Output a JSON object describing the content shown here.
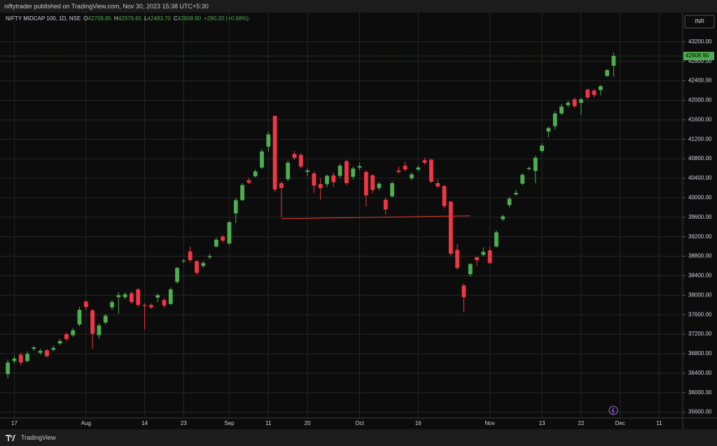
{
  "header": {
    "publisher": "niftytrader published on TradingView.com, Nov 30, 2023 15:38 UTC+5:30"
  },
  "footer": {
    "brand": "TradingView"
  },
  "chart_data": {
    "type": "candlestick",
    "title": "NIFTY MIDCAP 100, 1D, NSE",
    "ohlc_legend": [
      {
        "label": "O",
        "value": "42709.85"
      },
      {
        "label": "H",
        "value": "42979.65"
      },
      {
        "label": "L",
        "value": "42483.70"
      },
      {
        "label": "C",
        "value": "42908.90"
      }
    ],
    "change": "+290.20 (+0.68%)",
    "currency": "INR",
    "last_price_label": "42908.90",
    "up_color": "#4caf50",
    "down_color": "#f23645",
    "open": [
      36380,
      36650,
      36780,
      36650,
      36900,
      36820,
      36870,
      36880,
      37010,
      37200,
      37180,
      37400,
      37870,
      37690,
      37180,
      37440,
      37750,
      37960,
      37960,
      38040,
      38120,
      37800,
      37800,
      37950,
      37900,
      37820,
      38270,
      38700,
      38900,
      38700,
      38600,
      38780,
      39000,
      39200,
      39060,
      39680,
      39950,
      40360,
      40440,
      40620,
      41050,
      41680,
      40300,
      40380,
      40900,
      40880,
      40530,
      40500,
      40280,
      40280,
      40460,
      40450,
      40750,
      40430,
      40620,
      40530,
      40460,
      40200,
      39960,
      40030,
      40560,
      40660,
      40400,
      40580,
      40770,
      40780,
      40300,
      40240,
      39920,
      38930,
      38200,
      38430,
      38780,
      38830,
      38920,
      39000,
      39560,
      39850,
      40070,
      40290,
      40590,
      40550,
      40960,
      41360,
      41470,
      41730,
      41900,
      42020,
      41950,
      42220,
      42200,
      42210,
      42500,
      42709.85
    ],
    "high": [
      36680,
      36760,
      36820,
      36850,
      36960,
      36900,
      36900,
      36970,
      37100,
      37240,
      37320,
      37760,
      37900,
      37720,
      37420,
      37620,
      37900,
      38060,
      38060,
      38080,
      38150,
      37840,
      37830,
      38040,
      37940,
      38160,
      38580,
      38740,
      39000,
      38720,
      38700,
      38850,
      39180,
      39240,
      39520,
      39990,
      40300,
      40400,
      40580,
      41000,
      41360,
      41680,
      40340,
      40760,
      40960,
      40920,
      40600,
      40540,
      40400,
      40480,
      40520,
      40700,
      40780,
      40640,
      40720,
      40560,
      40480,
      40320,
      40000,
      40340,
      40640,
      40740,
      40520,
      40660,
      40820,
      40800,
      40380,
      40260,
      39930,
      39050,
      38240,
      38660,
      38800,
      38980,
      39000,
      39330,
      39650,
      40020,
      40160,
      40500,
      40640,
      40860,
      41120,
      41460,
      41780,
      41920,
      41990,
      42060,
      42050,
      42240,
      42230,
      42310,
      42640,
      42979.65
    ],
    "low": [
      36300,
      36600,
      36560,
      36620,
      36860,
      36780,
      36720,
      36850,
      36980,
      37060,
      37150,
      37360,
      37700,
      36900,
      37100,
      37400,
      37700,
      37620,
      37920,
      37820,
      37760,
      37300,
      37720,
      37860,
      37740,
      37800,
      38240,
      38660,
      38680,
      38420,
      38560,
      38740,
      38980,
      39080,
      39040,
      39480,
      39940,
      40280,
      40420,
      40590,
      40950,
      40120,
      39600,
      40340,
      40780,
      40600,
      40440,
      40100,
      39960,
      40220,
      40220,
      40400,
      40260,
      40380,
      40560,
      39820,
      40100,
      40150,
      39650,
      40000,
      40500,
      40540,
      40360,
      40540,
      40680,
      40300,
      40200,
      39780,
      38800,
      38520,
      37650,
      38380,
      38600,
      38800,
      38640,
      38980,
      39520,
      39800,
      40040,
      40260,
      40560,
      40300,
      40920,
      41240,
      41400,
      41700,
      41860,
      41840,
      41700,
      42020,
      42060,
      42100,
      42480,
      42483.7
    ],
    "close": [
      36620,
      36700,
      36620,
      36800,
      36930,
      36860,
      36750,
      36920,
      37060,
      37100,
      37280,
      37700,
      37760,
      37210,
      37380,
      37580,
      37860,
      38000,
      38020,
      37860,
      37800,
      37780,
      37750,
      38000,
      37790,
      38120,
      38560,
      38710,
      38720,
      38460,
      38660,
      38800,
      39140,
      39120,
      39500,
      39950,
      40260,
      40310,
      40540,
      40950,
      41300,
      40170,
      40200,
      40720,
      40820,
      40640,
      40560,
      40250,
      40200,
      40450,
      40320,
      40660,
      40300,
      40600,
      40650,
      40050,
      40160,
      40290,
      39760,
      40300,
      40530,
      40580,
      40480,
      40620,
      40720,
      40330,
      40230,
      39830,
      38850,
      38560,
      37960,
      38640,
      38720,
      38890,
      38660,
      39290,
      39620,
      39980,
      40100,
      40470,
      40610,
      40820,
      41070,
      41430,
      41730,
      41870,
      41950,
      41880,
      42020,
      42060,
      42110,
      42290,
      42620,
      42908.9
    ],
    "trendline": {
      "x": [
        42,
        71
      ],
      "values": [
        39570,
        39630
      ],
      "color": "#e53935"
    },
    "xlim": [
      -1.2,
      103.6
    ],
    "xticks": [
      {
        "value": 1,
        "label": "17"
      },
      {
        "value": 12,
        "label": "Aug"
      },
      {
        "value": 21,
        "label": "14"
      },
      {
        "value": 27,
        "label": "23"
      },
      {
        "value": 34,
        "label": "Sep"
      },
      {
        "value": 40,
        "label": "11"
      },
      {
        "value": 46,
        "label": "20"
      },
      {
        "value": 54,
        "label": "Oct"
      },
      {
        "value": 63,
        "label": "16"
      },
      {
        "value": 74,
        "label": "Nov"
      },
      {
        "value": 82,
        "label": "13"
      },
      {
        "value": 88,
        "label": "22"
      },
      {
        "value": 94,
        "label": "Dec"
      },
      {
        "value": 100,
        "label": "11"
      }
    ],
    "ylim": [
      35480,
      43800
    ],
    "yticks": [
      {
        "value": 35600,
        "label": "35600.00"
      },
      {
        "value": 36000,
        "label": "36000.00"
      },
      {
        "value": 36400,
        "label": "36400.00"
      },
      {
        "value": 36800,
        "label": "36800.00"
      },
      {
        "value": 37200,
        "label": "37200.00"
      },
      {
        "value": 37600,
        "label": "37600.00"
      },
      {
        "value": 38000,
        "label": "38000.00"
      },
      {
        "value": 38400,
        "label": "38400.00"
      },
      {
        "value": 38800,
        "label": "38800.00"
      },
      {
        "value": 39200,
        "label": "39200.00"
      },
      {
        "value": 39600,
        "label": "39600.00"
      },
      {
        "value": 40000,
        "label": "40000.00"
      },
      {
        "value": 40400,
        "label": "40400.00"
      },
      {
        "value": 40800,
        "label": "40800.00"
      },
      {
        "value": 41200,
        "label": "41200.00"
      },
      {
        "value": 41600,
        "label": "41600.00"
      },
      {
        "value": 42000,
        "label": "42000.00"
      },
      {
        "value": 42400,
        "label": "42400.00"
      },
      {
        "value": 42800,
        "label": "42800.00"
      },
      {
        "value": 43200,
        "label": "43200.00"
      }
    ],
    "grid": true
  }
}
